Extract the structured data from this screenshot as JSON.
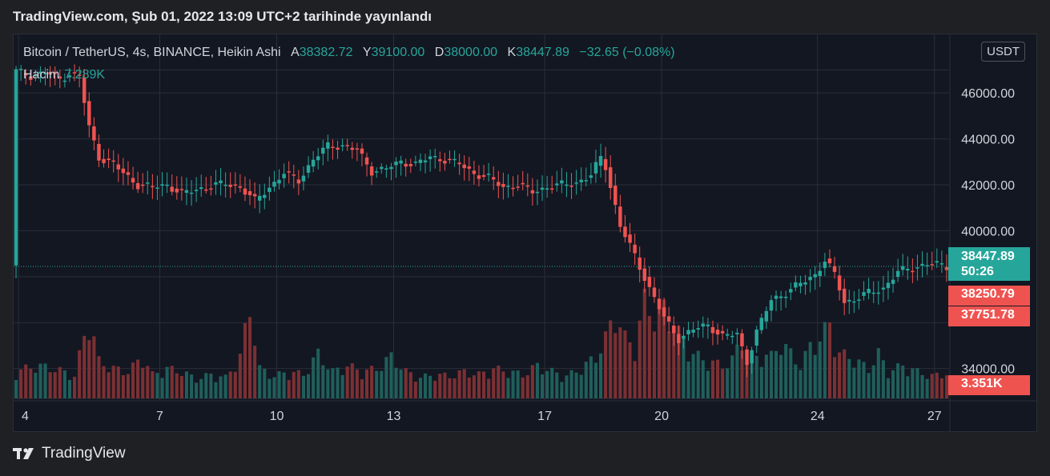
{
  "caption": "TradingView.com, Şub 01, 2022 13:09 UTC+2 tarihinde yayınlandı",
  "legend": {
    "symbol": "Bitcoin / TetherUS, 4s, BINANCE, Heikin Ashi",
    "open_label": "A",
    "open": "38382.72",
    "high_label": "Y",
    "high": "39100.00",
    "low_label": "D",
    "low": "38000.00",
    "close_label": "K",
    "close": "38447.89",
    "change": "−32.65 (−0.08%)"
  },
  "volume_legend": {
    "label": "Hacim",
    "value": "7.289K"
  },
  "currency": "USDT",
  "tags": {
    "last_price": "38447.89",
    "countdown": "50:26",
    "high": "38250.79",
    "low": "37751.78",
    "volume": "3.351K"
  },
  "logo_text": "TradingView",
  "colors": {
    "up": "#26a69a",
    "down": "#ef5350",
    "vol_up": "#1f5f5b",
    "vol_down": "#7c3033",
    "background": "#131722",
    "grid": "#2a2e39"
  },
  "chart_data": {
    "type": "candlestick",
    "y_ticks": [
      "46000.00",
      "44000.00",
      "42000.00",
      "40000.00",
      "34000.00"
    ],
    "x_ticks": [
      "4",
      "7",
      "10",
      "13",
      "17",
      "20",
      "24",
      "27"
    ],
    "ylim": [
      32700,
      48200
    ],
    "last_price": 38447.89,
    "close_path": [
      [
        0,
        46950
      ],
      [
        3,
        46750
      ],
      [
        6,
        46900
      ],
      [
        9,
        46600
      ],
      [
        11,
        46850
      ],
      [
        13,
        46700
      ],
      [
        15,
        44500
      ],
      [
        17,
        43200
      ],
      [
        20,
        42900
      ],
      [
        22,
        42500
      ],
      [
        25,
        42000
      ],
      [
        28,
        41900
      ],
      [
        31,
        42000
      ],
      [
        34,
        41600
      ],
      [
        37,
        41800
      ],
      [
        40,
        41950
      ],
      [
        43,
        42050
      ],
      [
        46,
        41900
      ],
      [
        49,
        41300
      ],
      [
        52,
        41900
      ],
      [
        55,
        42500
      ],
      [
        58,
        42200
      ],
      [
        61,
        43100
      ],
      [
        64,
        43700
      ],
      [
        67,
        43700
      ],
      [
        70,
        43500
      ],
      [
        73,
        42600
      ],
      [
        76,
        42700
      ],
      [
        79,
        43000
      ],
      [
        82,
        42900
      ],
      [
        85,
        43200
      ],
      [
        88,
        43100
      ],
      [
        91,
        42900
      ],
      [
        94,
        42500
      ],
      [
        97,
        42300
      ],
      [
        100,
        41900
      ],
      [
        103,
        42000
      ],
      [
        106,
        41700
      ],
      [
        109,
        41900
      ],
      [
        112,
        42000
      ],
      [
        115,
        42100
      ],
      [
        118,
        42400
      ],
      [
        120,
        43200
      ],
      [
        121,
        42800
      ],
      [
        124,
        40200
      ],
      [
        127,
        38900
      ],
      [
        130,
        37500
      ],
      [
        133,
        36200
      ],
      [
        136,
        35300
      ],
      [
        139,
        35700
      ],
      [
        142,
        35900
      ],
      [
        145,
        35400
      ],
      [
        148,
        35500
      ],
      [
        150,
        34300
      ],
      [
        152,
        35600
      ],
      [
        155,
        37000
      ],
      [
        158,
        37300
      ],
      [
        161,
        37700
      ],
      [
        164,
        38100
      ],
      [
        166,
        38700
      ],
      [
        168,
        38100
      ],
      [
        170,
        36900
      ],
      [
        172,
        37000
      ],
      [
        175,
        37300
      ],
      [
        178,
        37500
      ],
      [
        181,
        38200
      ],
      [
        184,
        38400
      ],
      [
        187,
        38550
      ],
      [
        190,
        38500
      ],
      [
        191,
        38447.89
      ]
    ],
    "volume_path": [
      [
        0,
        0.18
      ],
      [
        4,
        0.22
      ],
      [
        8,
        0.2
      ],
      [
        12,
        0.15
      ],
      [
        15,
        0.55
      ],
      [
        17,
        0.25
      ],
      [
        20,
        0.2
      ],
      [
        23,
        0.18
      ],
      [
        26,
        0.28
      ],
      [
        28,
        0.16
      ],
      [
        31,
        0.2
      ],
      [
        34,
        0.18
      ],
      [
        37,
        0.13
      ],
      [
        40,
        0.16
      ],
      [
        43,
        0.14
      ],
      [
        46,
        0.28
      ],
      [
        48,
        0.62
      ],
      [
        50,
        0.2
      ],
      [
        53,
        0.15
      ],
      [
        56,
        0.18
      ],
      [
        59,
        0.16
      ],
      [
        62,
        0.3
      ],
      [
        65,
        0.18
      ],
      [
        68,
        0.22
      ],
      [
        71,
        0.18
      ],
      [
        74,
        0.2
      ],
      [
        77,
        0.28
      ],
      [
        80,
        0.18
      ],
      [
        83,
        0.14
      ],
      [
        86,
        0.16
      ],
      [
        89,
        0.15
      ],
      [
        92,
        0.18
      ],
      [
        95,
        0.16
      ],
      [
        98,
        0.2
      ],
      [
        101,
        0.18
      ],
      [
        104,
        0.16
      ],
      [
        107,
        0.22
      ],
      [
        110,
        0.18
      ],
      [
        113,
        0.15
      ],
      [
        116,
        0.2
      ],
      [
        119,
        0.28
      ],
      [
        121,
        0.4
      ],
      [
        123,
        0.58
      ],
      [
        125,
        0.4
      ],
      [
        127,
        0.35
      ],
      [
        129,
        0.65
      ],
      [
        131,
        0.55
      ],
      [
        133,
        0.6
      ],
      [
        135,
        0.48
      ],
      [
        137,
        0.38
      ],
      [
        139,
        0.3
      ],
      [
        141,
        0.26
      ],
      [
        143,
        0.24
      ],
      [
        145,
        0.22
      ],
      [
        147,
        0.26
      ],
      [
        149,
        0.4
      ],
      [
        151,
        0.25
      ],
      [
        153,
        0.3
      ],
      [
        155,
        0.28
      ],
      [
        157,
        0.38
      ],
      [
        159,
        0.3
      ],
      [
        161,
        0.22
      ],
      [
        163,
        0.35
      ],
      [
        165,
        0.4
      ],
      [
        167,
        0.5
      ],
      [
        169,
        0.3
      ],
      [
        171,
        0.28
      ],
      [
        173,
        0.24
      ],
      [
        175,
        0.2
      ],
      [
        177,
        0.3
      ],
      [
        179,
        0.18
      ],
      [
        182,
        0.22
      ],
      [
        185,
        0.18
      ],
      [
        188,
        0.15
      ],
      [
        191,
        0.17
      ]
    ]
  }
}
